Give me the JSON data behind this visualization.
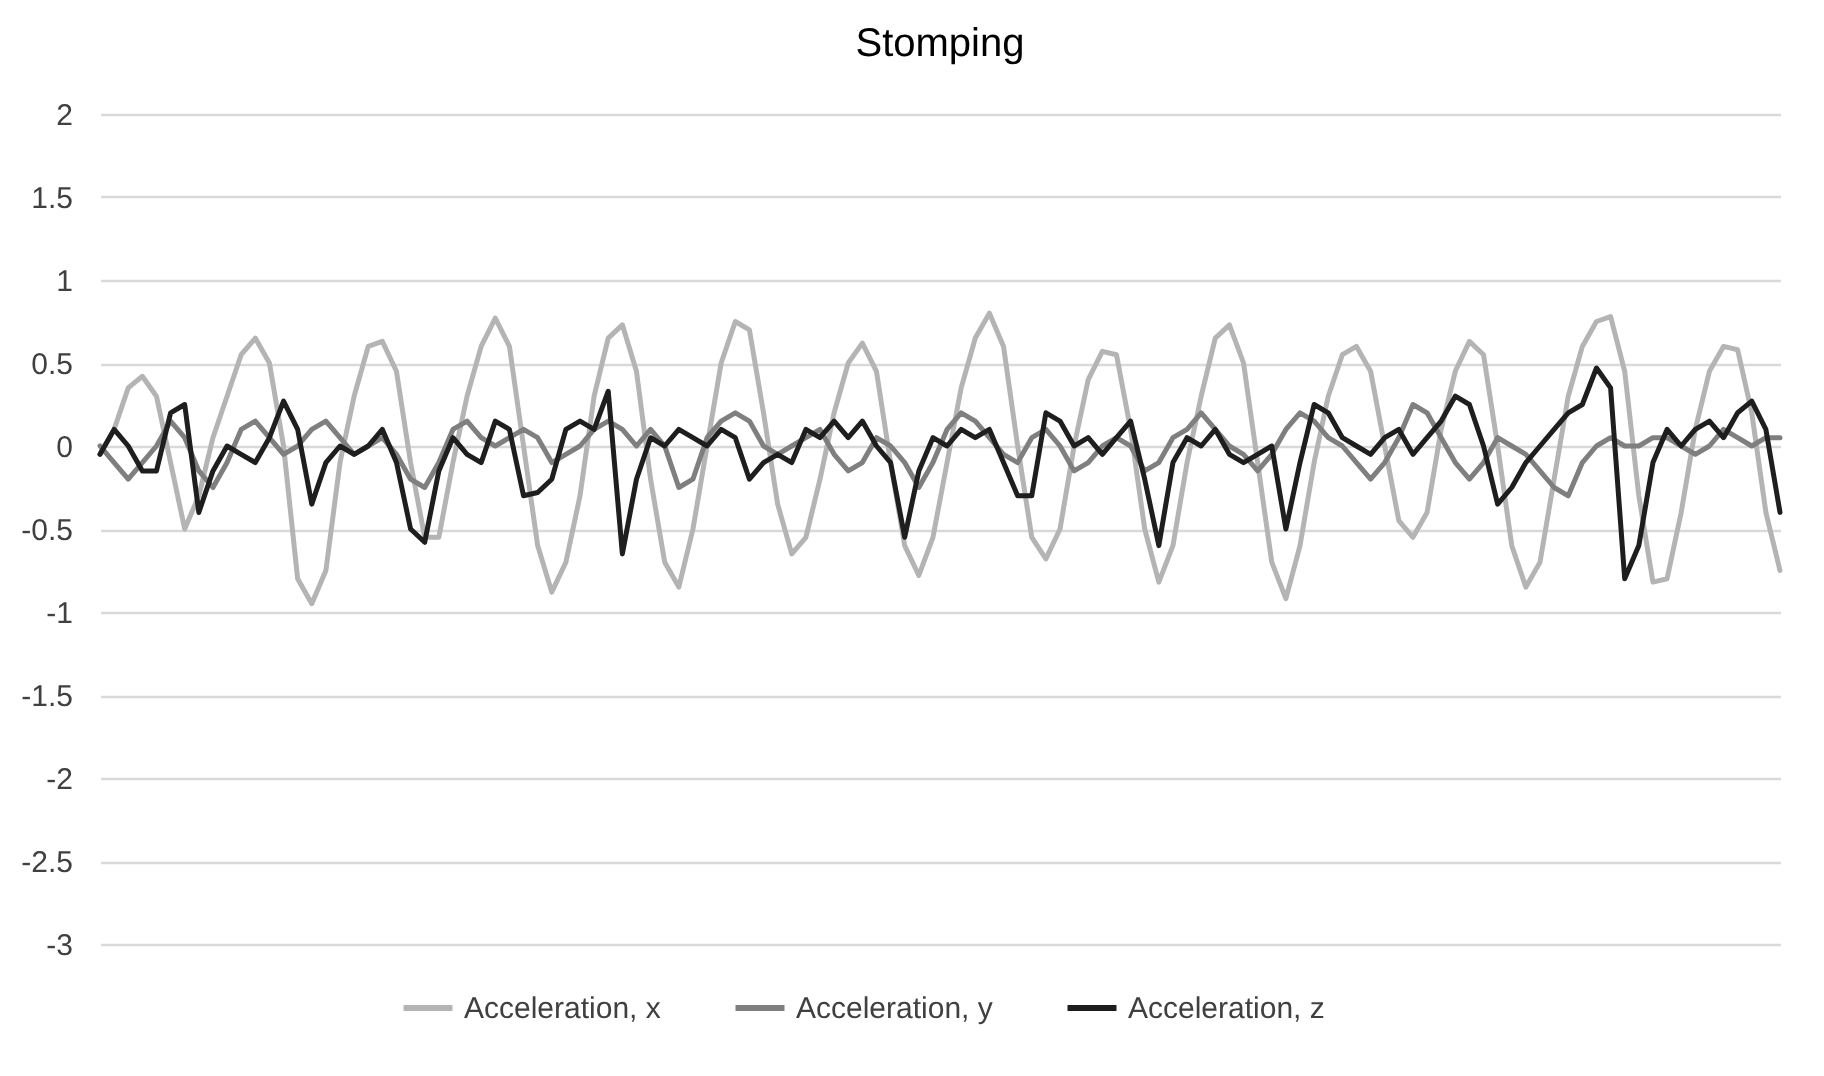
{
  "chart_data": {
    "type": "line",
    "title": "Stomping",
    "categories": [
      null,
      null,
      null,
      null,
      null,
      null,
      null,
      null,
      null,
      null,
      null,
      null,
      null,
      null,
      null,
      null,
      null,
      null,
      null,
      null,
      null,
      null,
      null,
      null,
      null,
      null,
      null,
      null,
      null,
      null,
      null,
      null,
      null,
      null,
      null,
      null,
      null,
      null,
      null,
      null,
      null,
      null,
      null,
      null,
      null,
      null,
      null,
      null,
      null,
      null,
      null,
      null,
      null,
      null,
      null,
      null,
      null,
      null,
      null,
      null,
      null,
      null,
      null,
      null,
      null,
      null,
      null,
      null,
      null,
      null,
      null,
      null,
      null,
      null,
      null,
      null,
      null,
      null,
      null,
      null,
      null,
      null,
      null,
      null,
      null,
      null,
      null,
      null,
      null,
      null,
      null,
      null,
      null,
      null,
      null,
      null,
      null,
      null,
      null,
      null,
      null,
      null,
      null,
      null,
      null,
      null,
      null,
      null,
      null,
      null,
      null,
      null,
      null,
      null,
      null,
      null,
      null,
      null,
      null,
      null
    ],
    "series": [
      {
        "name": "Acceleration, x",
        "color": "#b4b4b4",
        "values": [
          -0.05,
          0.1,
          0.35,
          0.42,
          0.3,
          -0.1,
          -0.5,
          -0.3,
          0.05,
          0.3,
          0.55,
          0.65,
          0.5,
          0.0,
          -0.8,
          -0.95,
          -0.75,
          -0.1,
          0.3,
          0.6,
          0.63,
          0.45,
          -0.1,
          -0.55,
          -0.55,
          -0.1,
          0.3,
          0.6,
          0.77,
          0.6,
          0.0,
          -0.6,
          -0.88,
          -0.7,
          -0.3,
          0.3,
          0.65,
          0.73,
          0.45,
          -0.2,
          -0.7,
          -0.85,
          -0.5,
          0.0,
          0.5,
          0.75,
          0.7,
          0.2,
          -0.35,
          -0.65,
          -0.55,
          -0.2,
          0.2,
          0.5,
          0.62,
          0.45,
          -0.1,
          -0.6,
          -0.78,
          -0.55,
          -0.1,
          0.35,
          0.65,
          0.8,
          0.6,
          0.0,
          -0.55,
          -0.68,
          -0.5,
          0.0,
          0.4,
          0.57,
          0.55,
          0.1,
          -0.5,
          -0.82,
          -0.6,
          -0.1,
          0.3,
          0.65,
          0.73,
          0.5,
          -0.1,
          -0.7,
          -0.92,
          -0.6,
          -0.1,
          0.3,
          0.55,
          0.6,
          0.45,
          0.0,
          -0.45,
          -0.55,
          -0.4,
          0.1,
          0.45,
          0.63,
          0.55,
          0.0,
          -0.6,
          -0.85,
          -0.7,
          -0.2,
          0.3,
          0.6,
          0.75,
          0.78,
          0.45,
          -0.3,
          -0.82,
          -0.8,
          -0.4,
          0.1,
          0.45,
          0.6,
          0.58,
          0.2,
          -0.4,
          -0.75
        ]
      },
      {
        "name": "Acceleration, y",
        "color": "#7f7f7f",
        "values": [
          0.0,
          -0.1,
          -0.2,
          -0.1,
          0.0,
          0.15,
          0.05,
          -0.15,
          -0.25,
          -0.1,
          0.1,
          0.15,
          0.05,
          -0.05,
          0.0,
          0.1,
          0.15,
          0.05,
          -0.05,
          0.0,
          0.05,
          -0.05,
          -0.2,
          -0.25,
          -0.1,
          0.1,
          0.15,
          0.05,
          0.0,
          0.05,
          0.1,
          0.05,
          -0.1,
          -0.05,
          0.0,
          0.1,
          0.15,
          0.1,
          0.0,
          0.1,
          0.0,
          -0.25,
          -0.2,
          0.05,
          0.15,
          0.2,
          0.15,
          0.0,
          -0.05,
          0.0,
          0.05,
          0.1,
          -0.05,
          -0.15,
          -0.1,
          0.05,
          0.0,
          -0.1,
          -0.25,
          -0.1,
          0.1,
          0.2,
          0.15,
          0.05,
          -0.05,
          -0.1,
          0.05,
          0.1,
          0.0,
          -0.15,
          -0.1,
          0.0,
          0.05,
          0.0,
          -0.15,
          -0.1,
          0.05,
          0.1,
          0.2,
          0.1,
          0.0,
          -0.05,
          -0.15,
          -0.05,
          0.1,
          0.2,
          0.15,
          0.05,
          0.0,
          -0.1,
          -0.2,
          -0.1,
          0.05,
          0.25,
          0.2,
          0.05,
          -0.1,
          -0.2,
          -0.1,
          0.05,
          0.0,
          -0.05,
          -0.15,
          -0.25,
          -0.3,
          -0.1,
          0.0,
          0.05,
          0.0,
          0.0,
          0.05,
          0.05,
          0.0,
          -0.05,
          0.0,
          0.1,
          0.05,
          0.0,
          0.05,
          0.05
        ]
      },
      {
        "name": "Acceleration, z",
        "color": "#1e1e1e",
        "values": [
          -0.05,
          0.1,
          0.0,
          -0.15,
          -0.15,
          0.2,
          0.25,
          -0.4,
          -0.15,
          0.0,
          -0.05,
          -0.1,
          0.05,
          0.27,
          0.1,
          -0.35,
          -0.1,
          0.0,
          -0.05,
          0.0,
          0.1,
          -0.1,
          -0.5,
          -0.58,
          -0.15,
          0.05,
          -0.05,
          -0.1,
          0.15,
          0.1,
          -0.3,
          -0.28,
          -0.2,
          0.1,
          0.15,
          0.1,
          0.33,
          -0.65,
          -0.2,
          0.05,
          0.0,
          0.1,
          0.05,
          0.0,
          0.1,
          0.05,
          -0.2,
          -0.1,
          -0.05,
          -0.1,
          0.1,
          0.05,
          0.15,
          0.05,
          0.15,
          0.0,
          -0.1,
          -0.55,
          -0.15,
          0.05,
          0.0,
          0.1,
          0.05,
          0.1,
          -0.1,
          -0.3,
          -0.3,
          0.2,
          0.15,
          0.0,
          0.05,
          -0.05,
          0.05,
          0.15,
          -0.2,
          -0.6,
          -0.1,
          0.05,
          0.0,
          0.1,
          -0.05,
          -0.1,
          -0.05,
          0.0,
          -0.5,
          -0.1,
          0.25,
          0.2,
          0.05,
          0.0,
          -0.05,
          0.05,
          0.1,
          -0.05,
          0.05,
          0.15,
          0.3,
          0.25,
          0.0,
          -0.35,
          -0.25,
          -0.1,
          0.0,
          0.1,
          0.2,
          0.25,
          0.47,
          0.35,
          -0.8,
          -0.6,
          -0.1,
          0.1,
          0.0,
          0.1,
          0.15,
          0.05,
          0.2,
          0.27,
          0.1,
          -0.4
        ]
      }
    ],
    "ylim": [
      -3,
      2
    ],
    "yticks": [
      -3,
      -2.5,
      -2,
      -1.5,
      -1,
      -0.5,
      0,
      0.5,
      1,
      1.5,
      2
    ],
    "grid": "y",
    "legend": "bottom",
    "line_style": "solid",
    "marker": "none"
  }
}
